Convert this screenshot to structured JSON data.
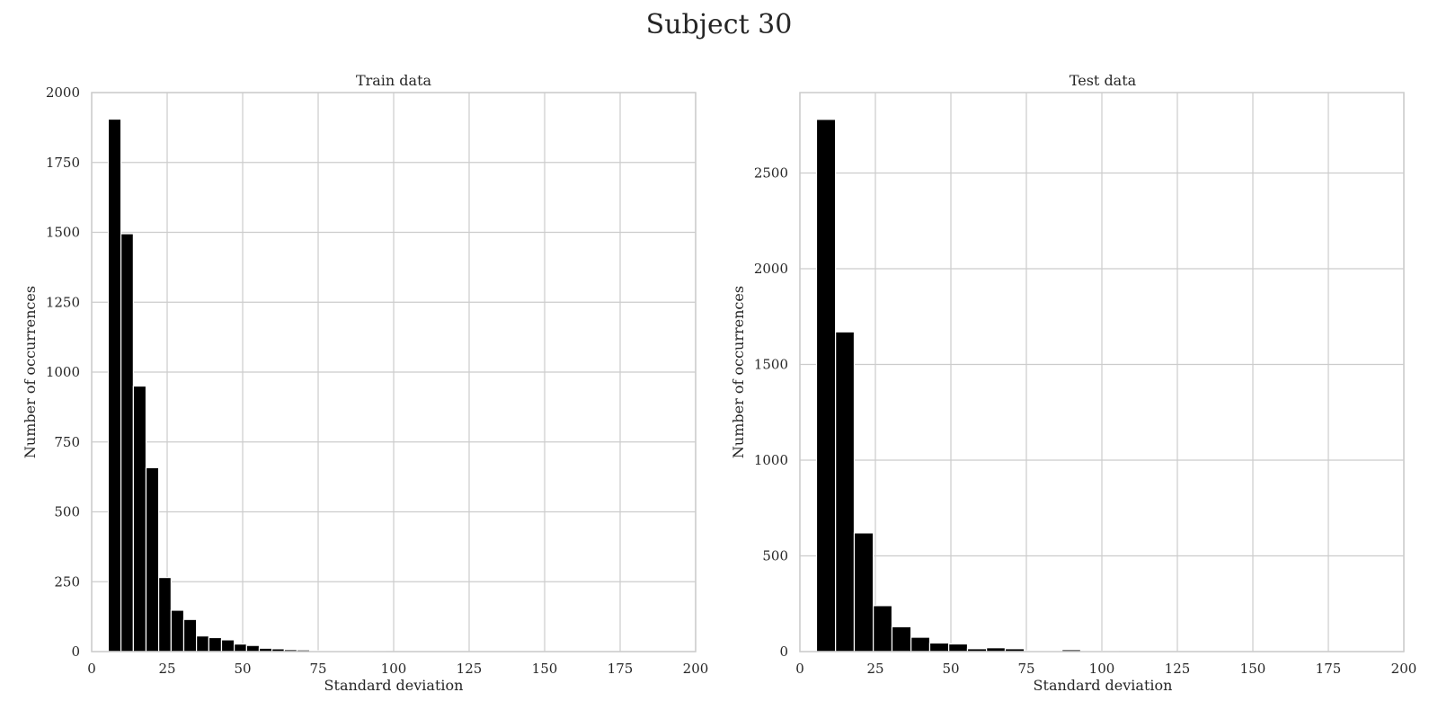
{
  "figure": {
    "suptitle": "Subject 30"
  },
  "colors": {
    "bar": "#000000",
    "bar_edge": "#ffffff",
    "grid": "#cccccc",
    "spine": "#cccccc",
    "text": "#262626"
  },
  "chart_data": [
    {
      "type": "bar",
      "title": "Train data",
      "xlabel": "Standard deviation",
      "ylabel": "Number of occurrences",
      "xlim": [
        0,
        200
      ],
      "ylim": [
        0,
        2000
      ],
      "xticks": [
        0,
        25,
        50,
        75,
        100,
        125,
        150,
        175,
        200
      ],
      "yticks": [
        0,
        250,
        500,
        750,
        1000,
        1250,
        1500,
        1750,
        2000
      ],
      "grid": true,
      "bin_edges": [
        5.5,
        9.7,
        13.8,
        18.0,
        22.2,
        26.3,
        30.5,
        34.7,
        38.8,
        43.0,
        47.2,
        51.3,
        55.5,
        59.7,
        63.8,
        68.0,
        72.2,
        76.3,
        80.5,
        84.7,
        88.8,
        93.0,
        97.2
      ],
      "values": [
        1905,
        1495,
        950,
        658,
        265,
        148,
        115,
        56,
        50,
        42,
        27,
        22,
        12,
        10,
        7,
        6,
        3,
        2,
        2,
        2,
        3,
        1
      ]
    },
    {
      "type": "bar",
      "title": "Test data",
      "xlabel": "Standard deviation",
      "ylabel": "Number of occurrences",
      "xlim": [
        0,
        200
      ],
      "ylim": [
        0,
        2920
      ],
      "xticks": [
        0,
        25,
        50,
        75,
        100,
        125,
        150,
        175,
        200
      ],
      "yticks": [
        0,
        500,
        1000,
        1500,
        2000,
        2500
      ],
      "grid": true,
      "bin_edges": [
        5.5,
        11.8,
        18.0,
        24.3,
        30.5,
        36.8,
        43.0,
        49.3,
        55.5,
        61.8,
        68.0,
        74.3,
        80.5,
        86.8,
        93.0,
        99.3,
        105.5
      ],
      "values": [
        2780,
        1670,
        620,
        240,
        130,
        75,
        45,
        40,
        15,
        20,
        15,
        4,
        3,
        10,
        3,
        2
      ]
    }
  ]
}
